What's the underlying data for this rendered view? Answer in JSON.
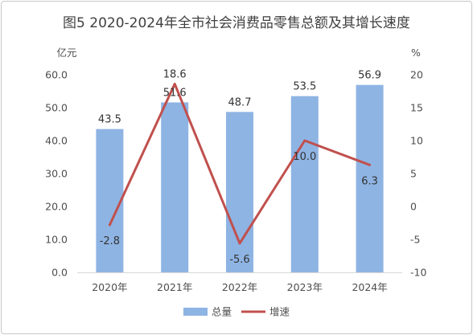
{
  "chart_data": {
    "type": "bar",
    "title": "图5  2020-2024年全市社会消费品零售总额及其增长速度",
    "categories": [
      "2020年",
      "2021年",
      "2022年",
      "2023年",
      "2024年"
    ],
    "y_left": {
      "unit": "亿元",
      "lim": [
        0,
        60
      ],
      "ticks": [
        "0.0",
        "10.0",
        "20.0",
        "30.0",
        "40.0",
        "50.0",
        "60.0"
      ]
    },
    "y_right": {
      "unit": "%",
      "lim": [
        -10,
        20
      ],
      "ticks": [
        "-10",
        "-5",
        "0",
        "5",
        "10",
        "15",
        "20"
      ]
    },
    "series": [
      {
        "name": "总量",
        "type": "bar",
        "color": "#8eb4e3",
        "axis": "left",
        "values": [
          43.5,
          51.6,
          48.7,
          53.5,
          56.9
        ],
        "labels": [
          "43.5",
          "51.6",
          "48.7",
          "53.5",
          "56.9"
        ]
      },
      {
        "name": "增速",
        "type": "line",
        "color": "#c0504d",
        "axis": "right",
        "values": [
          -2.8,
          18.6,
          -5.6,
          10.0,
          6.3
        ],
        "labels": [
          "-2.8",
          "18.6",
          "-5.6",
          "10.0",
          "6.3"
        ]
      }
    ],
    "grid": false,
    "legend_position": "bottom"
  }
}
